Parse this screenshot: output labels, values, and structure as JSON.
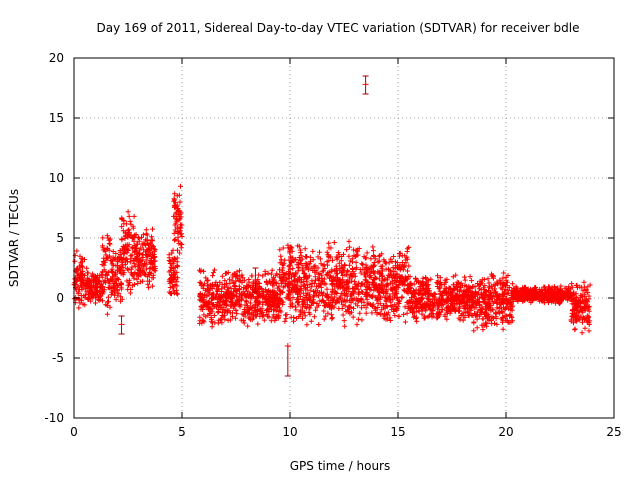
{
  "chart_data": {
    "type": "scatter",
    "title": "Day 169 of 2011, Sidereal Day-to-day VTEC variation (SDTVAR) for receiver bdle",
    "xlabel": "GPS time / hours",
    "ylabel": "SDTVAR / TECUs",
    "xlim": [
      0,
      25
    ],
    "ylim": [
      -10,
      20
    ],
    "xticks": [
      0,
      5,
      10,
      15,
      20,
      25
    ],
    "yticks": [
      -10,
      -5,
      0,
      5,
      10,
      15,
      20
    ],
    "xtick_labels": [
      "0",
      "5",
      "10",
      "15",
      "20",
      "25"
    ],
    "ytick_labels": [
      "-10",
      "-5",
      "0",
      "5",
      "10",
      "15",
      "20"
    ],
    "grid": true,
    "marker": "+",
    "color": "#ff0000",
    "errorbar_color": "#a00000",
    "series": [
      {
        "name": "SDTVAR",
        "clusters": [
          {
            "x_range": [
              0.0,
              0.5
            ],
            "y_range": [
              -1.0,
              4.0
            ]
          },
          {
            "x_range": [
              0.5,
              1.3
            ],
            "y_range": [
              -0.5,
              2.5
            ]
          },
          {
            "x_range": [
              1.3,
              1.7
            ],
            "y_range": [
              -2.0,
              6.5
            ]
          },
          {
            "x_range": [
              1.7,
              2.2
            ],
            "y_range": [
              -0.5,
              4.5
            ]
          },
          {
            "x_range": [
              2.2,
              2.8
            ],
            "y_range": [
              -0.5,
              8.0
            ]
          },
          {
            "x_range": [
              2.8,
              3.8
            ],
            "y_range": [
              0.5,
              6.0
            ]
          },
          {
            "x_range": [
              4.4,
              4.8
            ],
            "y_range": [
              -0.5,
              4.5
            ]
          },
          {
            "x_range": [
              4.6,
              5.0
            ],
            "y_range": [
              3.5,
              9.5
            ]
          },
          {
            "x_range": [
              5.8,
              9.5
            ],
            "y_range": [
              -2.5,
              2.5
            ]
          },
          {
            "x_range": [
              9.5,
              13.0
            ],
            "y_range": [
              -2.5,
              5.0
            ]
          },
          {
            "x_range": [
              13.0,
              15.5
            ],
            "y_range": [
              -2.5,
              4.5
            ]
          },
          {
            "x_range": [
              15.5,
              18.5
            ],
            "y_range": [
              -2.0,
              2.0
            ]
          },
          {
            "x_range": [
              18.5,
              20.3
            ],
            "y_range": [
              -3.0,
              2.5
            ]
          },
          {
            "x_range": [
              20.3,
              23.0
            ],
            "y_range": [
              -0.5,
              1.0
            ]
          },
          {
            "x_range": [
              23.0,
              23.9
            ],
            "y_range": [
              -3.0,
              1.5
            ]
          }
        ],
        "error_bars": [
          {
            "x": 13.5,
            "y": 17.8,
            "low": 17.0,
            "high": 18.5
          },
          {
            "x": 9.9,
            "y": -4.0,
            "low": -6.5,
            "high": -4.0
          },
          {
            "x": 8.4,
            "y": 1.5,
            "low": 0.5,
            "high": 2.5
          },
          {
            "x": 2.2,
            "y": -2.2,
            "low": -3.0,
            "high": -1.5
          }
        ]
      }
    ]
  }
}
